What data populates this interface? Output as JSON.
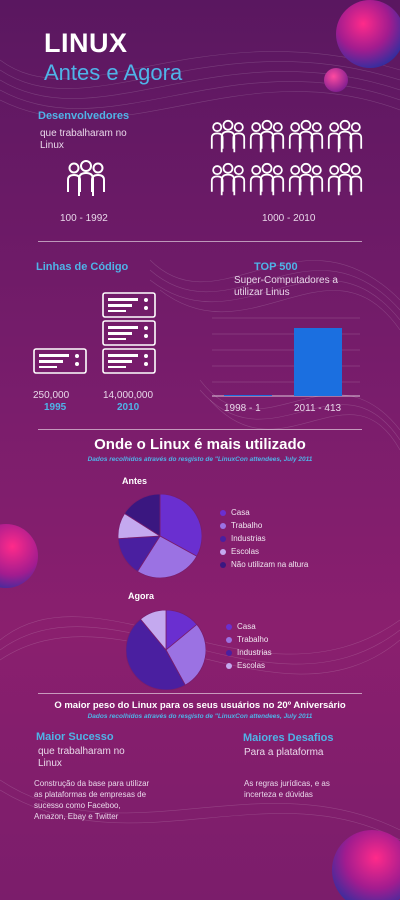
{
  "header": {
    "title": "LINUX",
    "subtitle": "Antes e Agora"
  },
  "developers": {
    "heading": "Desenvolvedores",
    "description": "que trabalharam no Linux",
    "left_label": "100 - 1992",
    "right_label": "1000 - 2010"
  },
  "lines_of_code": {
    "heading": "Linhas de Código",
    "left_value": "250,000",
    "left_year": "1995",
    "right_value": "14,000,000",
    "right_year": "2010"
  },
  "top500": {
    "heading": "TOP 500",
    "description": "Super-Computadores a utilizar Linus",
    "left_label": "1998 - 1",
    "right_label": "2011 - 413"
  },
  "usage": {
    "heading": "Onde o Linux é mais utilizado",
    "source": "Dados recolhidos  através do resgisto de \"LinuxCon attendees, July 2011",
    "before_label": "Antes",
    "after_label": "Agora"
  },
  "chart_data": [
    {
      "type": "pie",
      "title": "Antes",
      "categories": [
        "Casa",
        "Trabalho",
        "Industrias",
        "Escolas",
        "Não utilizam na altura"
      ],
      "values": [
        33,
        26,
        15,
        10,
        16
      ],
      "colors": [
        "#6a2fd0",
        "#9b72e3",
        "#4a1fa0",
        "#c4a9ef",
        "#3a1780"
      ]
    },
    {
      "type": "pie",
      "title": "Agora",
      "categories": [
        "Casa",
        "Trabalho",
        "Industrias",
        "Escolas"
      ],
      "values": [
        14,
        28,
        47,
        11
      ],
      "colors": [
        "#6a2fd0",
        "#9b72e3",
        "#4a1fa0",
        "#c4a9ef"
      ]
    }
  ],
  "anniversary": {
    "heading": "O maior peso do Linux para os seus usuários no 20º Aniversário",
    "source": "Dados recolhidos  através do resgisto de \"LinuxCon attendees, July 2011",
    "success_title": "Maior Sucesso",
    "success_sub": "que trabalharam no Linux",
    "success_text": "Construção da base   para utilizar as plataformas de empresas de sucesso como Faceboo, Amazon, Ebay e Twitter",
    "challenges_title": "Maiores Desafios",
    "challenges_sub": "Para a plataforma",
    "challenges_text": "As regras jurídicas, e as incerteza e dúvidas"
  },
  "colors": {
    "accent": "#4fb3e8",
    "bar": "#1b6fe0",
    "background": "#7a1d6c"
  }
}
